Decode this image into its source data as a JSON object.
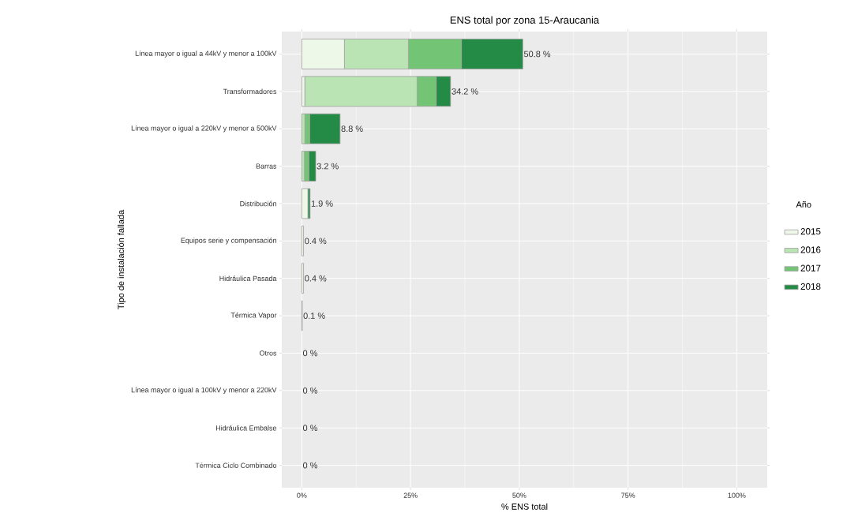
{
  "chart_data": {
    "type": "bar",
    "orientation": "horizontal",
    "stacked": true,
    "title": "ENS total por zona 15-Araucania",
    "xlabel": "% ENS total",
    "ylabel": "Tipo de instalación fallada",
    "legend_title": "Año",
    "legend": "right",
    "grid": true,
    "categories": [
      "Línea mayor o igual a 44kV y menor a 100kV",
      "Transformadores",
      "Línea mayor o igual a 220kV y menor a 500kV",
      "Barras",
      "Distribución",
      "Equipos serie y compensación",
      "Hidráulica Pasada",
      "Térmica Vapor",
      "Otros",
      "Línea mayor o igual a 100kV y menor a 220kV",
      "Hidráulica Embalse",
      "Térmica Ciclo Combinado"
    ],
    "series": [
      {
        "name": "2015",
        "color": "#edf8e9",
        "values": [
          9.8,
          0.7,
          0.0,
          0.0,
          1.4,
          0.4,
          0.4,
          0.1,
          0,
          0,
          0,
          0
        ]
      },
      {
        "name": "2016",
        "color": "#bae4b3",
        "values": [
          14.7,
          25.8,
          0.7,
          0.6,
          0.0,
          0,
          0,
          0,
          0,
          0,
          0,
          0
        ]
      },
      {
        "name": "2017",
        "color": "#74c476",
        "values": [
          12.2,
          4.4,
          1.1,
          1.0,
          null,
          0,
          0,
          0,
          0,
          0,
          0,
          0
        ]
      },
      {
        "name": "2018",
        "color": "#238b45",
        "values": [
          14.1,
          3.3,
          7.0,
          1.6,
          0.5,
          0,
          0,
          0,
          0,
          0,
          0,
          0
        ]
      }
    ],
    "totals": [
      "50.8 %",
      "34.2 %",
      "8.8 %",
      "3.2 %",
      "1.9 %",
      "0.4 %",
      "0.4 %",
      "0.1 %",
      "0 %",
      "0 %",
      "0 %",
      "0 %"
    ],
    "xlim": [
      -4.6,
      107
    ],
    "xticks": [
      {
        "value": 0,
        "label": "0%"
      },
      {
        "value": 25,
        "label": "25%"
      },
      {
        "value": 50,
        "label": "50%"
      },
      {
        "value": 75,
        "label": "75%"
      },
      {
        "value": 100,
        "label": "100%"
      }
    ]
  }
}
